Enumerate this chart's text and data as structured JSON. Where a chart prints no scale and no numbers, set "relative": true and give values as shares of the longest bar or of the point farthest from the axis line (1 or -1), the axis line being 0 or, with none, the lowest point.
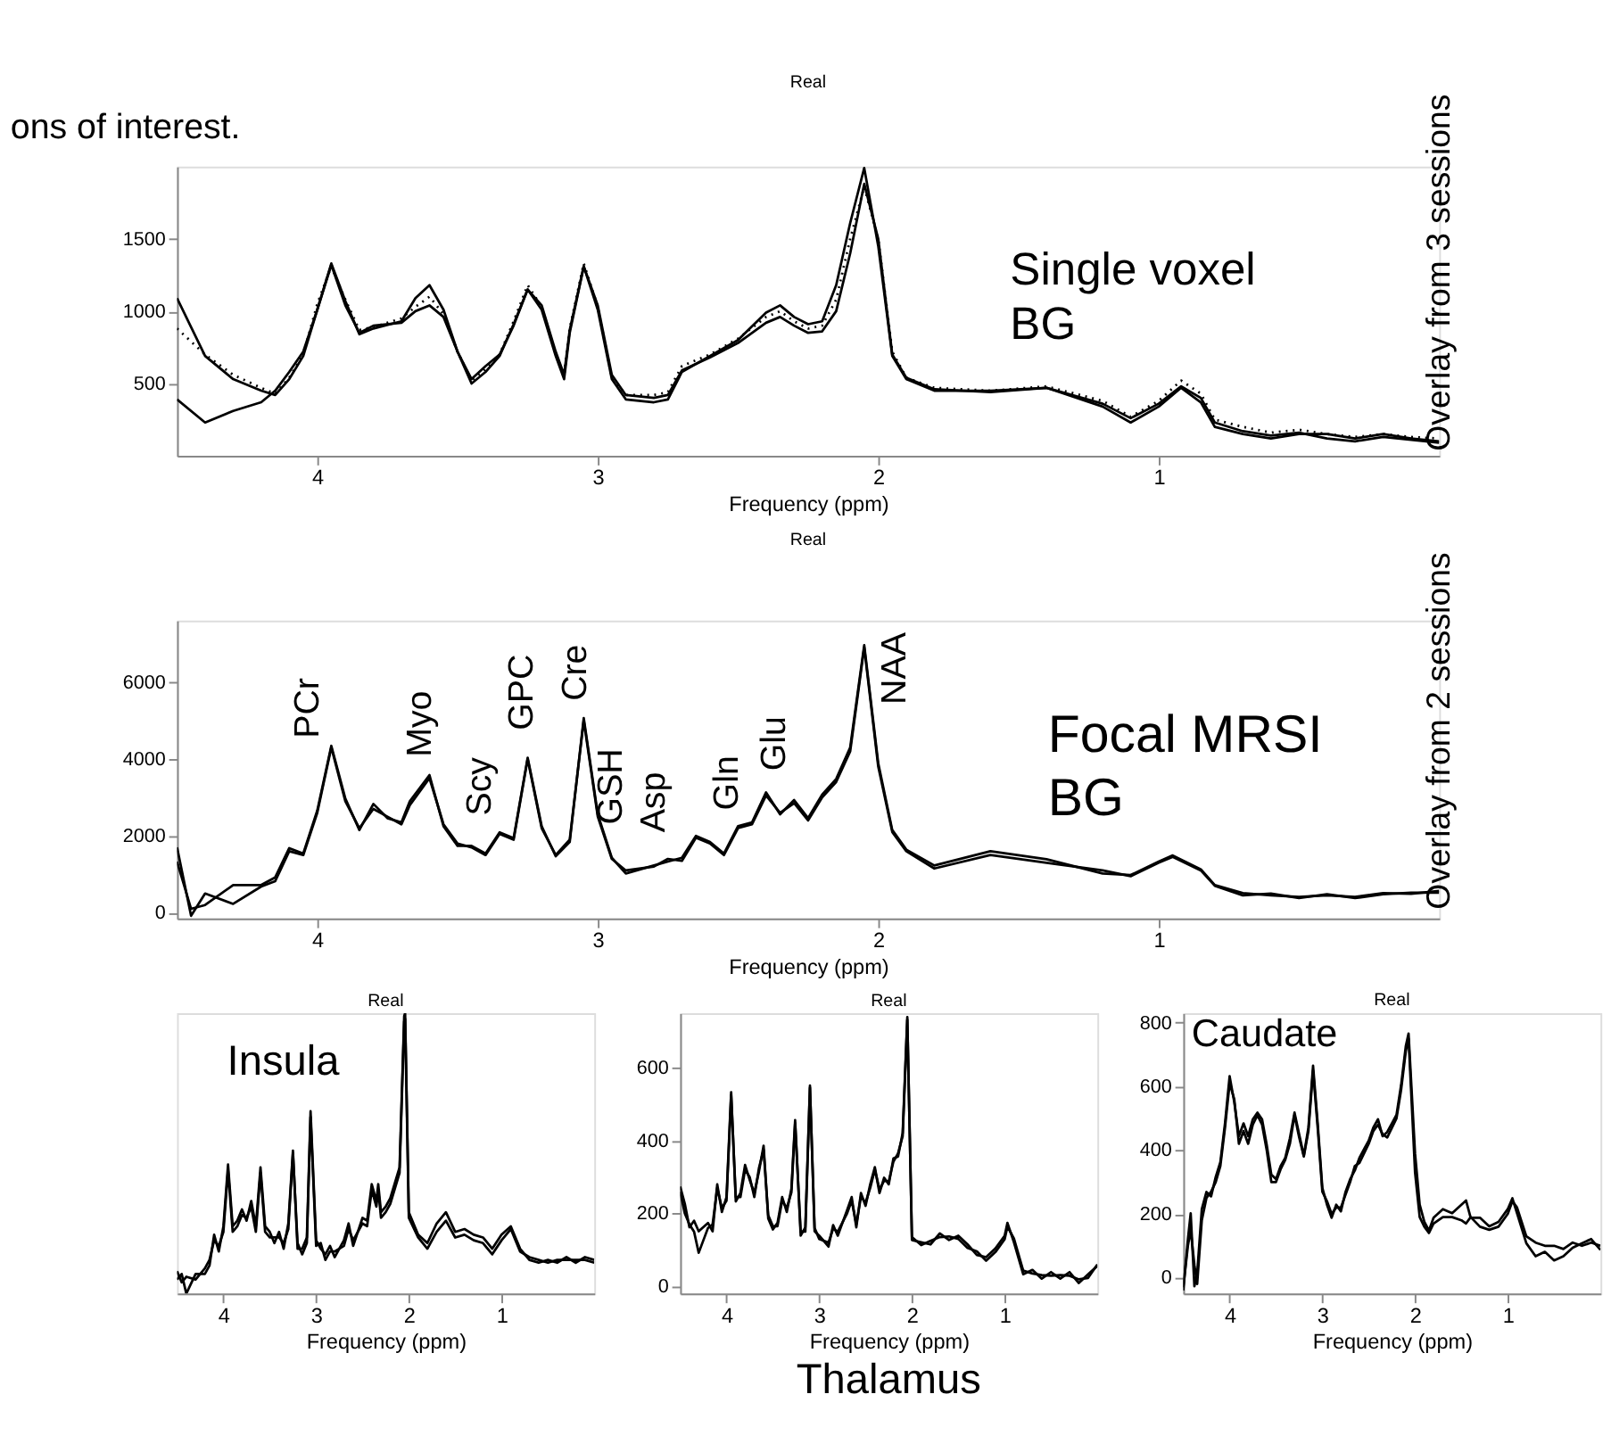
{
  "chart_data": [
    {
      "type": "line",
      "title": "Real",
      "xlabel": "Frequency (ppm)",
      "xlim": [
        4.5,
        0
      ],
      "xticks": [
        4,
        3,
        2,
        1
      ],
      "ylim": [
        0,
        2000
      ],
      "yticks": [
        500,
        1000,
        1500
      ],
      "grid": false,
      "legend": false,
      "marker": "none",
      "x": [
        4.5,
        4.4,
        4.3,
        4.2,
        4.15,
        4.1,
        4.05,
        4.0,
        3.95,
        3.9,
        3.85,
        3.8,
        3.7,
        3.65,
        3.6,
        3.55,
        3.5,
        3.45,
        3.4,
        3.35,
        3.3,
        3.25,
        3.2,
        3.15,
        3.12,
        3.1,
        3.05,
        3.0,
        2.95,
        2.9,
        2.8,
        2.75,
        2.7,
        2.6,
        2.5,
        2.4,
        2.35,
        2.3,
        2.25,
        2.2,
        2.15,
        2.1,
        2.05,
        2.0,
        1.95,
        1.9,
        1.8,
        1.6,
        1.4,
        1.2,
        1.1,
        1.0,
        0.92,
        0.85,
        0.8,
        0.7,
        0.6,
        0.5,
        0.4,
        0.3,
        0.2,
        0.1,
        0.0
      ],
      "series": [
        {
          "color": "#000000",
          "line_style": "solid",
          "values": [
            1090,
            690,
            530,
            450,
            420,
            530,
            690,
            1010,
            1330,
            1070,
            840,
            880,
            930,
            1090,
            1180,
            1010,
            720,
            500,
            580,
            690,
            910,
            1150,
            1010,
            690,
            530,
            850,
            1310,
            1010,
            530,
            390,
            370,
            390,
            580,
            690,
            800,
            990,
            1040,
            960,
            910,
            930,
            1180,
            1610,
            1990,
            1450,
            690,
            530,
            450,
            450,
            470,
            340,
            230,
            340,
            470,
            370,
            200,
            150,
            120,
            150,
            150,
            120,
            150,
            120,
            100
          ]
        },
        {
          "color": "#000000",
          "line_style": "solid",
          "values": [
            390,
            230,
            310,
            370,
            450,
            580,
            720,
            1010,
            1320,
            1040,
            850,
            900,
            920,
            1000,
            1040,
            960,
            720,
            530,
            620,
            700,
            900,
            1150,
            1040,
            720,
            560,
            870,
            1310,
            1040,
            560,
            420,
            400,
            420,
            590,
            680,
            780,
            920,
            960,
            900,
            850,
            860,
            1000,
            1400,
            1880,
            1500,
            700,
            540,
            460,
            440,
            470,
            360,
            260,
            360,
            480,
            400,
            230,
            170,
            140,
            160,
            120,
            100,
            130,
            110,
            90
          ]
        },
        {
          "color": "#000000",
          "line_style": "dotted",
          "values": [
            880,
            700,
            560,
            470,
            430,
            540,
            700,
            1050,
            1310,
            1080,
            870,
            890,
            950,
            1030,
            1100,
            980,
            720,
            520,
            600,
            700,
            930,
            1180,
            1030,
            700,
            560,
            880,
            1330,
            1030,
            540,
            420,
            420,
            440,
            620,
            700,
            810,
            960,
            1000,
            930,
            880,
            900,
            1080,
            1500,
            1860,
            1500,
            720,
            540,
            470,
            450,
            480,
            380,
            270,
            380,
            520,
            430,
            250,
            200,
            160,
            180,
            150,
            130,
            150,
            130,
            120
          ]
        }
      ],
      "annotations": [
        "ons of interest.",
        "Single voxel\nBG",
        "Overlay from 3 sessions"
      ]
    },
    {
      "type": "line",
      "title": "Real",
      "xlabel": "Frequency (ppm)",
      "xlim": [
        4.5,
        0
      ],
      "xticks": [
        4,
        3,
        2,
        1
      ],
      "ylim": [
        -150,
        7600
      ],
      "yticks": [
        0,
        2000,
        4000,
        6000
      ],
      "grid": false,
      "legend": false,
      "marker": "none",
      "x": [
        4.5,
        4.45,
        4.4,
        4.3,
        4.2,
        4.15,
        4.1,
        4.05,
        4.0,
        3.95,
        3.9,
        3.85,
        3.8,
        3.75,
        3.7,
        3.67,
        3.6,
        3.55,
        3.5,
        3.45,
        3.4,
        3.35,
        3.3,
        3.25,
        3.2,
        3.15,
        3.1,
        3.05,
        3.0,
        2.95,
        2.9,
        2.8,
        2.75,
        2.7,
        2.65,
        2.6,
        2.55,
        2.5,
        2.45,
        2.4,
        2.35,
        2.3,
        2.25,
        2.2,
        2.15,
        2.1,
        2.05,
        2.0,
        1.95,
        1.9,
        1.8,
        1.6,
        1.4,
        1.2,
        1.1,
        1.0,
        0.95,
        0.85,
        0.8,
        0.7,
        0.6,
        0.5,
        0.4,
        0.3,
        0.2,
        0.1,
        0.0
      ],
      "series": [
        {
          "color": "#000000",
          "line_style": "solid",
          "values": [
            1330,
            100,
            200,
            720,
            720,
            920,
            1680,
            1540,
            2660,
            4340,
            2970,
            2150,
            2830,
            2460,
            2350,
            2900,
            3580,
            2250,
            1740,
            1740,
            1540,
            2090,
            1940,
            4030,
            2250,
            1470,
            1840,
            5060,
            2560,
            1430,
            1020,
            1230,
            1330,
            1430,
            2000,
            1840,
            1540,
            2250,
            2350,
            3130,
            2560,
            2930,
            2460,
            3070,
            3480,
            4300,
            6960,
            3890,
            2150,
            1640,
            1230,
            1600,
            1390,
            1020,
            980,
            1330,
            1490,
            1130,
            720,
            510,
            450,
            410,
            450,
            410,
            510,
            490,
            570
          ]
        },
        {
          "color": "#000000",
          "line_style": "solid",
          "values": [
            1700,
            -80,
            500,
            230,
            680,
            820,
            1600,
            1500,
            2600,
            4300,
            2900,
            2200,
            2700,
            2500,
            2300,
            2800,
            3500,
            2300,
            1800,
            1700,
            1500,
            2050,
            1900,
            4000,
            2200,
            1500,
            1900,
            5000,
            2500,
            1400,
            1100,
            1200,
            1400,
            1350,
            1950,
            1800,
            1500,
            2200,
            2300,
            3050,
            2600,
            2850,
            2400,
            3000,
            3400,
            4200,
            6900,
            3800,
            2100,
            1600,
            1150,
            1500,
            1300,
            1100,
            950,
            1300,
            1450,
            1100,
            700,
            450,
            500,
            380,
            480,
            380,
            480,
            520,
            520
          ]
        }
      ],
      "annotations": [
        "PCr",
        "Myo",
        "Scy",
        "GPC",
        "Cre",
        "GSH",
        "Asp",
        "Gln",
        "Glu",
        "NAA",
        "Focal MRSI\nBG",
        "Overlay from 2 sessions"
      ]
    },
    {
      "type": "line",
      "title": "Real",
      "xlabel": "Frequency (ppm)",
      "xlim": [
        4.5,
        0
      ],
      "xticks": [
        4,
        3,
        2,
        1
      ],
      "relative": true,
      "tick_labels": "x",
      "grid": false,
      "legend": false,
      "marker": "none",
      "x": [
        4.5,
        4.45,
        4.4,
        4.3,
        4.2,
        4.15,
        4.1,
        4.05,
        4.0,
        3.95,
        3.9,
        3.85,
        3.8,
        3.75,
        3.7,
        3.65,
        3.6,
        3.55,
        3.5,
        3.45,
        3.4,
        3.35,
        3.3,
        3.25,
        3.2,
        3.15,
        3.1,
        3.06,
        3.0,
        2.95,
        2.9,
        2.85,
        2.8,
        2.7,
        2.65,
        2.6,
        2.5,
        2.45,
        2.4,
        2.35,
        2.33,
        2.3,
        2.25,
        2.2,
        2.1,
        2.05,
        2.04,
        2.0,
        1.9,
        1.8,
        1.7,
        1.6,
        1.5,
        1.4,
        1.3,
        1.2,
        1.1,
        1.0,
        0.9,
        0.8,
        0.7,
        0.6,
        0.5,
        0.4,
        0.3,
        0.2,
        0.1,
        0.0
      ],
      "series": [
        {
          "color": "#000000",
          "line_style": "solid",
          "values": [
            0.05,
            0.07,
            0.0,
            0.07,
            0.07,
            0.1,
            0.21,
            0.15,
            0.24,
            0.46,
            0.24,
            0.26,
            0.3,
            0.26,
            0.33,
            0.24,
            0.45,
            0.24,
            0.22,
            0.18,
            0.22,
            0.16,
            0.25,
            0.51,
            0.16,
            0.16,
            0.2,
            0.65,
            0.19,
            0.16,
            0.14,
            0.17,
            0.13,
            0.19,
            0.25,
            0.17,
            0.27,
            0.26,
            0.39,
            0.33,
            0.39,
            0.29,
            0.31,
            0.34,
            0.45,
            0.99,
            1.0,
            0.29,
            0.21,
            0.18,
            0.25,
            0.29,
            0.22,
            0.23,
            0.21,
            0.2,
            0.16,
            0.21,
            0.24,
            0.16,
            0.12,
            0.11,
            0.12,
            0.11,
            0.13,
            0.11,
            0.13,
            0.12
          ]
        },
        {
          "color": "#000000",
          "line_style": "solid",
          "values": [
            0.08,
            0.04,
            0.06,
            0.05,
            0.09,
            0.12,
            0.19,
            0.17,
            0.22,
            0.44,
            0.22,
            0.24,
            0.28,
            0.27,
            0.31,
            0.22,
            0.43,
            0.22,
            0.2,
            0.2,
            0.2,
            0.18,
            0.23,
            0.5,
            0.18,
            0.14,
            0.18,
            0.63,
            0.17,
            0.18,
            0.12,
            0.15,
            0.15,
            0.17,
            0.23,
            0.19,
            0.25,
            0.24,
            0.37,
            0.31,
            0.37,
            0.27,
            0.29,
            0.32,
            0.43,
            0.97,
            0.98,
            0.27,
            0.2,
            0.16,
            0.22,
            0.26,
            0.2,
            0.21,
            0.19,
            0.18,
            0.14,
            0.19,
            0.23,
            0.15,
            0.13,
            0.12,
            0.11,
            0.12,
            0.12,
            0.12,
            0.12,
            0.11
          ]
        }
      ],
      "annotations": [
        "Insula"
      ]
    },
    {
      "type": "line",
      "title": "Real",
      "xlabel": "Frequency (ppm)",
      "xlim": [
        4.5,
        0
      ],
      "xticks": [
        4,
        3,
        2,
        1
      ],
      "ylim": [
        -20,
        750
      ],
      "yticks": [
        0,
        200,
        400,
        600
      ],
      "grid": false,
      "legend": false,
      "marker": "none",
      "x": [
        4.5,
        4.45,
        4.4,
        4.35,
        4.3,
        4.2,
        4.15,
        4.1,
        4.05,
        4.0,
        3.95,
        3.9,
        3.85,
        3.8,
        3.75,
        3.7,
        3.65,
        3.6,
        3.55,
        3.5,
        3.45,
        3.4,
        3.35,
        3.3,
        3.26,
        3.2,
        3.15,
        3.1,
        3.05,
        3.0,
        2.9,
        2.85,
        2.8,
        2.7,
        2.65,
        2.6,
        2.55,
        2.5,
        2.45,
        2.4,
        2.35,
        2.3,
        2.25,
        2.2,
        2.15,
        2.1,
        2.05,
        2.0,
        1.9,
        1.8,
        1.7,
        1.6,
        1.5,
        1.4,
        1.3,
        1.2,
        1.1,
        1.0,
        0.97,
        0.9,
        0.8,
        0.7,
        0.6,
        0.5,
        0.4,
        0.3,
        0.2,
        0.1,
        0.0
      ],
      "series": [
        {
          "color": "#000000",
          "line_style": "solid",
          "values": [
            274,
            227,
            162,
            180,
            151,
            174,
            151,
            280,
            204,
            245,
            533,
            233,
            256,
            333,
            292,
            256,
            315,
            386,
            186,
            156,
            174,
            245,
            204,
            268,
            456,
            139,
            162,
            551,
            151,
            139,
            109,
            168,
            139,
            209,
            245,
            162,
            256,
            221,
            280,
            327,
            256,
            298,
            280,
            351,
            356,
            421,
            739,
            127,
            121,
            115,
            145,
            127,
            139,
            115,
            86,
            80,
            104,
            139,
            174,
            121,
            33,
            45,
            21,
            39,
            21,
            39,
            9,
            33,
            56
          ]
        },
        {
          "color": "#000000",
          "line_style": "solid",
          "values": [
            260,
            200,
            170,
            150,
            92,
            160,
            170,
            270,
            215,
            235,
            525,
            245,
            245,
            320,
            300,
            245,
            325,
            375,
            195,
            165,
            165,
            235,
            215,
            258,
            448,
            150,
            150,
            545,
            160,
            130,
            120,
            158,
            150,
            200,
            235,
            170,
            246,
            230,
            270,
            320,
            266,
            290,
            288,
            342,
            365,
            412,
            732,
            135,
            113,
            125,
            135,
            137,
            130,
            105,
            96,
            70,
            94,
            129,
            164,
            131,
            43,
            35,
            31,
            29,
            31,
            29,
            19,
            23,
            60
          ]
        }
      ],
      "annotations": [
        "Thalamus"
      ]
    },
    {
      "type": "line",
      "title": "Real",
      "xlabel": "Frequency (ppm)",
      "xlim": [
        4.5,
        0
      ],
      "xticks": [
        4,
        3,
        2,
        1
      ],
      "ylim": [
        -50,
        830
      ],
      "yticks": [
        0,
        200,
        400,
        600,
        800
      ],
      "grid": false,
      "legend": false,
      "marker": "none",
      "x": [
        4.5,
        4.45,
        4.42,
        4.38,
        4.35,
        4.3,
        4.25,
        4.2,
        4.15,
        4.1,
        4.05,
        4.0,
        3.95,
        3.9,
        3.85,
        3.8,
        3.75,
        3.7,
        3.65,
        3.6,
        3.55,
        3.5,
        3.45,
        3.4,
        3.35,
        3.3,
        3.25,
        3.2,
        3.15,
        3.1,
        3.05,
        3.0,
        2.95,
        2.9,
        2.85,
        2.8,
        2.75,
        2.7,
        2.65,
        2.6,
        2.55,
        2.5,
        2.45,
        2.4,
        2.35,
        2.3,
        2.25,
        2.2,
        2.15,
        2.1,
        2.07,
        2.0,
        1.95,
        1.9,
        1.85,
        1.8,
        1.7,
        1.6,
        1.5,
        1.45,
        1.4,
        1.3,
        1.2,
        1.1,
        1.0,
        0.95,
        0.9,
        0.8,
        0.7,
        0.6,
        0.5,
        0.4,
        0.3,
        0.2,
        0.1,
        0.0
      ],
      "series": [
        {
          "color": "#000000",
          "line_style": "solid",
          "values": [
            -40,
            121,
            202,
            -27,
            13,
            215,
            269,
            255,
            316,
            363,
            484,
            632,
            551,
            444,
            484,
            444,
            497,
            518,
            497,
            417,
            323,
            309,
            350,
            376,
            437,
            518,
            450,
            383,
            471,
            665,
            484,
            282,
            229,
            188,
            229,
            208,
            269,
            309,
            336,
            376,
            403,
            430,
            471,
            497,
            444,
            457,
            484,
            511,
            605,
            726,
            766,
            390,
            229,
            175,
            148,
            188,
            215,
            202,
            229,
            242,
            188,
            188,
            161,
            175,
            215,
            249,
            202,
            108,
            67,
            81,
            54,
            67,
            94,
            108,
            121,
            87
          ]
        },
        {
          "color": "#000000",
          "line_style": "solid",
          "values": [
            -30,
            100,
            150,
            40,
            -20,
            180,
            250,
            270,
            300,
            350,
            470,
            610,
            560,
            420,
            460,
            420,
            480,
            510,
            480,
            400,
            300,
            300,
            340,
            370,
            420,
            510,
            440,
            380,
            460,
            650,
            470,
            270,
            240,
            200,
            220,
            220,
            260,
            300,
            350,
            360,
            390,
            420,
            460,
            480,
            450,
            440,
            470,
            500,
            590,
            710,
            750,
            330,
            190,
            160,
            140,
            170,
            190,
            190,
            180,
            170,
            190,
            160,
            150,
            160,
            200,
            240,
            220,
            130,
            110,
            100,
            100,
            90,
            110,
            100,
            110,
            100
          ]
        }
      ],
      "annotations": [
        "Caudate"
      ]
    }
  ]
}
